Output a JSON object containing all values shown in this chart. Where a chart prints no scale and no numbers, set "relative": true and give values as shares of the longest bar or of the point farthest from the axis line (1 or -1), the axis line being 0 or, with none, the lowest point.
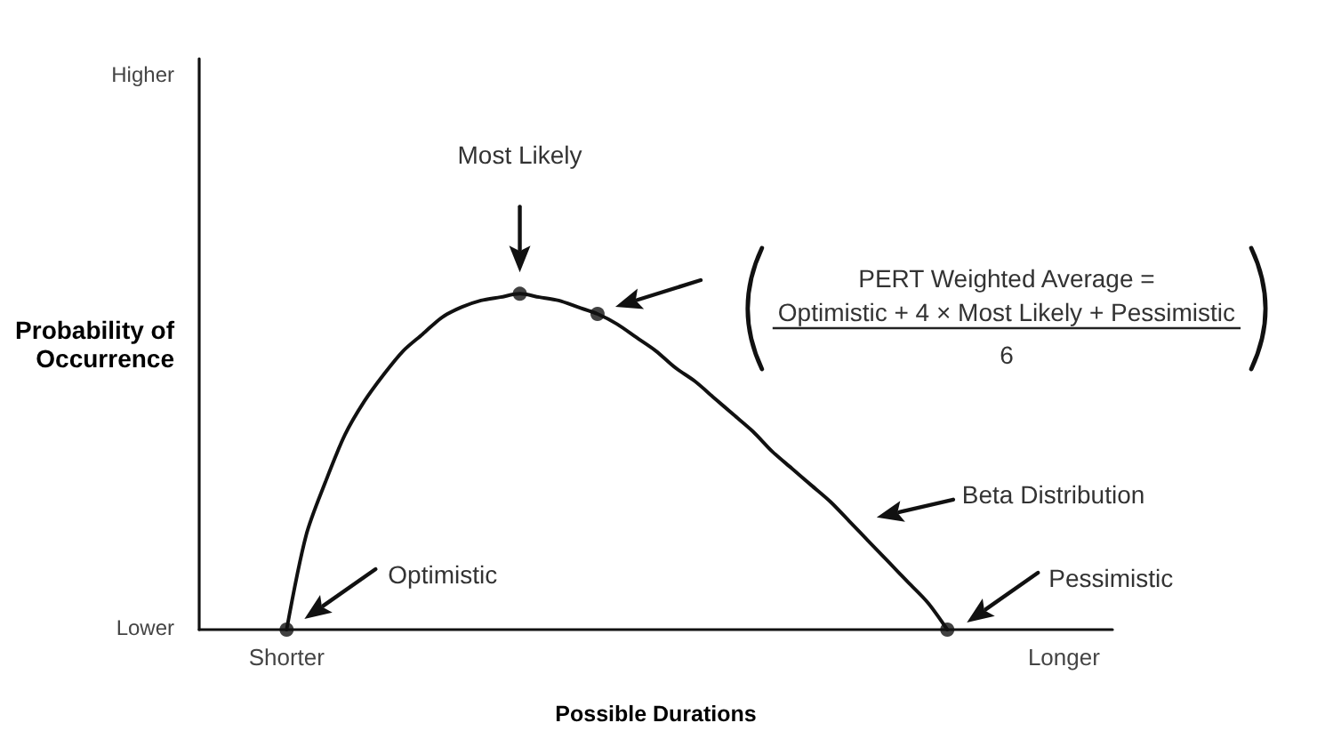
{
  "chart_data": {
    "type": "line",
    "xlabel": "Possible Durations",
    "ylabel": "Probability of Occurrence",
    "categories": [
      null,
      null,
      null,
      null,
      "Shorter",
      null,
      null,
      null,
      null,
      null,
      null,
      null,
      null,
      null,
      null,
      null,
      null,
      null,
      null,
      null,
      null,
      null,
      null,
      null,
      null,
      null,
      null,
      null,
      null,
      null,
      null,
      null,
      null,
      null,
      null,
      null,
      null,
      null,
      null,
      null,
      null,
      null,
      null,
      null,
      "Longer",
      null,
      null
    ],
    "relative": true,
    "grid": false,
    "marker": "none",
    "line_style": "solid",
    "series": [
      {
        "color": "#111111",
        "values": [
          null,
          null,
          null,
          null,
          0,
          0.28,
          0.44,
          0.58,
          0.68,
          0.76,
          0.83,
          0.88,
          0.93,
          0.96,
          0.98,
          0.99,
          1.0,
          0.99,
          0.98,
          0.96,
          0.94,
          0.91,
          0.87,
          0.83,
          0.78,
          0.74,
          0.69,
          0.64,
          0.59,
          0.53,
          0.48,
          0.43,
          0.38,
          0.32,
          0.26,
          0.2,
          0.14,
          0.08,
          0,
          null,
          null,
          null,
          null,
          null,
          null,
          null,
          null
        ]
      },
      {
        "type": "scatter",
        "marker": "circle",
        "color": "#111111",
        "values": [
          null,
          null,
          null,
          null,
          0,
          null,
          null,
          null,
          null,
          null,
          null,
          null,
          null,
          null,
          null,
          null,
          1.0,
          null,
          null,
          null,
          0.94,
          null,
          null,
          null,
          null,
          null,
          null,
          null,
          null,
          null,
          null,
          null,
          null,
          null,
          null,
          null,
          null,
          null,
          0,
          null,
          null,
          null,
          null,
          null,
          null,
          null,
          null
        ]
      }
    ],
    "annotations": [
      "Most Likely",
      "PERT Weighted Average =",
      "Optimistic + 4 × Most Likely + Pessimistic",
      "6",
      "Beta Distribution",
      "Optimistic",
      "Pessimistic",
      "Higher",
      "Lower"
    ]
  }
}
